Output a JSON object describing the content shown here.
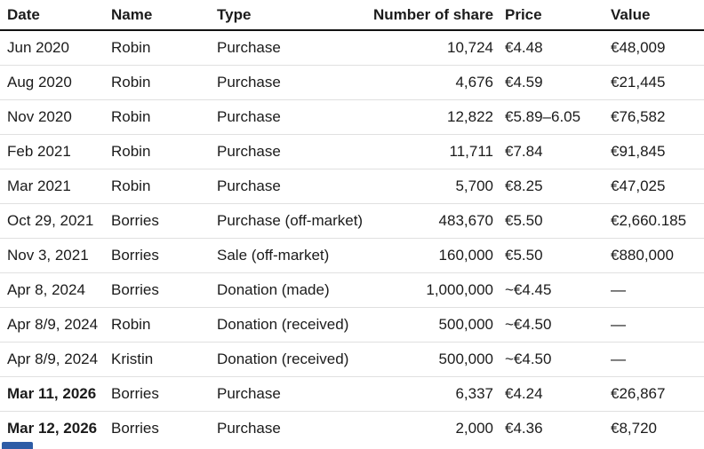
{
  "chart_data": {
    "type": "table",
    "title": "",
    "columns": [
      "Date",
      "Name",
      "Type",
      "Number of shares",
      "Price",
      "Value"
    ],
    "rows": [
      {
        "date": "Jun 2020",
        "name": "Robin",
        "type": "Purchase",
        "shares": "10,724",
        "price": "€4.48",
        "value": "€48,009",
        "bold": false
      },
      {
        "date": "Aug 2020",
        "name": "Robin",
        "type": "Purchase",
        "shares": "4,676",
        "price": "€4.59",
        "value": "€21,445",
        "bold": false
      },
      {
        "date": "Nov 2020",
        "name": "Robin",
        "type": "Purchase",
        "shares": "12,822",
        "price": "€5.89–6.05",
        "value": "€76,582",
        "bold": false
      },
      {
        "date": "Feb 2021",
        "name": "Robin",
        "type": "Purchase",
        "shares": "11,711",
        "price": "€7.84",
        "value": "€91,845",
        "bold": false
      },
      {
        "date": "Mar 2021",
        "name": "Robin",
        "type": "Purchase",
        "shares": "5,700",
        "price": "€8.25",
        "value": "€47,025",
        "bold": false
      },
      {
        "date": "Oct 29, 2021",
        "name": "Borries",
        "type": "Purchase (off-market)",
        "shares": "483,670",
        "price": "€5.50",
        "value": "€2,660.185",
        "bold": false
      },
      {
        "date": "Nov 3, 2021",
        "name": "Borries",
        "type": "Sale (off-market)",
        "shares": "160,000",
        "price": "€5.50",
        "value": "€880,000",
        "bold": false
      },
      {
        "date": "Apr 8, 2024",
        "name": "Borries",
        "type": "Donation (made)",
        "shares": "1,000,000",
        "price": "~€4.45",
        "value": "—",
        "bold": false
      },
      {
        "date": "Apr 8/9, 2024",
        "name": "Robin",
        "type": "Donation (received)",
        "shares": "500,000",
        "price": "~€4.50",
        "value": "—",
        "bold": false
      },
      {
        "date": "Apr 8/9, 2024",
        "name": "Kristin",
        "type": "Donation (received)",
        "shares": "500,000",
        "price": "~€4.50",
        "value": "—",
        "bold": false
      },
      {
        "date": "Mar 11, 2026",
        "name": "Borries",
        "type": "Purchase",
        "shares": "6,337",
        "price": "€4.24",
        "value": "€26,867",
        "bold": true
      },
      {
        "date": "Mar 12, 2026",
        "name": "Borries",
        "type": "Purchase",
        "shares": "2,000",
        "price": "€4.36",
        "value": "€8,720",
        "bold": true
      }
    ],
    "layout": {
      "grid": "horizontal row separators",
      "shares_column_alignment": "right"
    }
  },
  "styles": {
    "background": "#ffffff",
    "text_color": "#1b1b1b",
    "header_rule_color": "#121212",
    "row_rule_color": "#e0e0e0",
    "bottom_fragment_color": "#2d5ca6"
  }
}
